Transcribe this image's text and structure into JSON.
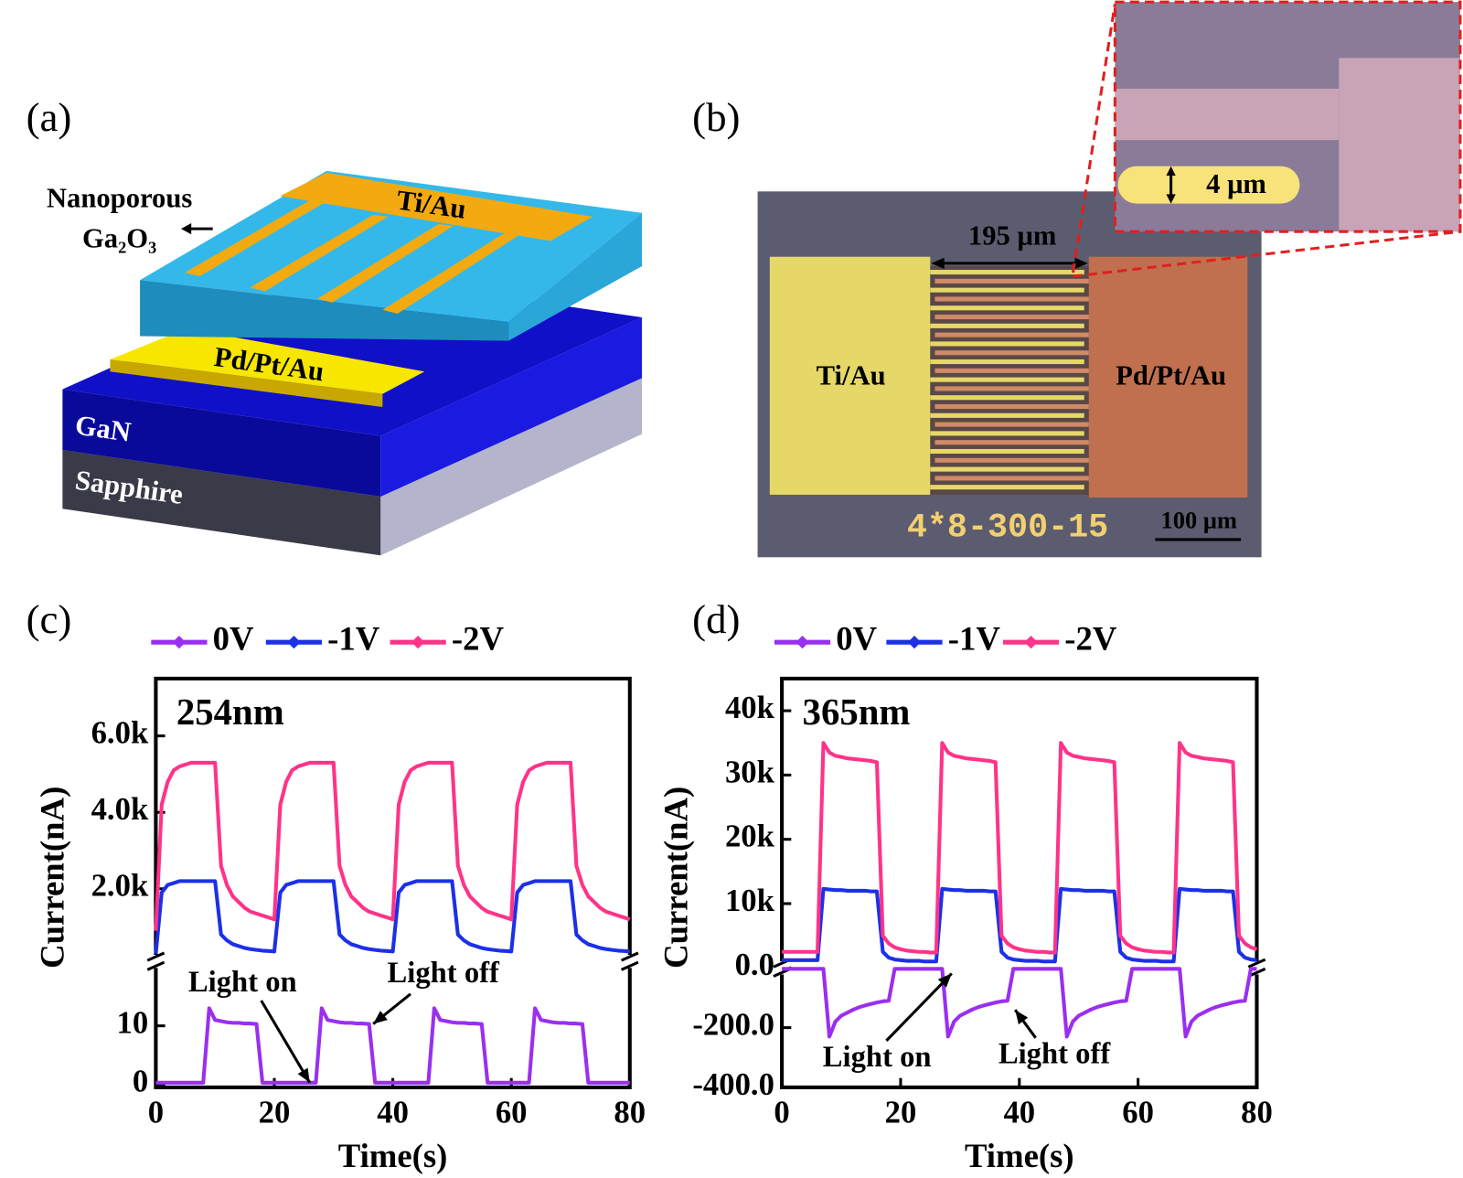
{
  "figure": {
    "a": {
      "label": "(a)",
      "nanoporous": "Nanoporous",
      "oxide": "Ga₂O₃",
      "top_electrode": "Ti/Au",
      "bottom_electrode": "Pd/Pt/Au",
      "layer_1": "GaN",
      "layer_2": "Sapphire"
    },
    "b": {
      "label": "(b)",
      "gap": "195 μm",
      "left_pad": "Ti/Au",
      "right_pad": "Pd/Pt/Au",
      "chip_id": "4*8-300-15",
      "scale_bar": "100 μm",
      "finger_width": "4 μm"
    }
  },
  "chart_data": [
    {
      "type": "line",
      "panel": "(c)",
      "label": "254nm",
      "xlabel": "Time(s)",
      "ylabel": "Current(nA)",
      "legend": "top",
      "annotations": [
        "Light on",
        "Light off"
      ],
      "x": [
        0,
        1,
        2,
        3,
        4,
        5,
        6,
        7,
        8,
        9,
        10,
        11,
        12,
        13,
        14,
        15,
        16,
        17,
        18,
        19,
        20,
        21,
        22,
        23,
        24,
        25,
        26,
        27,
        28,
        29,
        30,
        31,
        32,
        33,
        34,
        35,
        36,
        37,
        38,
        39,
        40,
        41,
        42,
        43,
        44,
        45,
        46,
        47,
        48,
        49,
        50,
        51,
        52,
        53,
        54,
        55,
        56,
        57,
        58,
        59,
        60,
        61,
        62,
        63,
        64,
        65,
        66,
        67,
        68,
        69,
        70,
        71,
        72,
        73,
        74,
        75,
        76,
        77,
        78,
        79,
        80
      ],
      "xlim": [
        0,
        80
      ],
      "xticks": [
        0,
        20,
        40,
        60,
        80
      ],
      "ylim": [
        100,
        7500
      ],
      "yticks": [
        {
          "value": 2000,
          "label": "2.0k"
        },
        {
          "value": 4000,
          "label": "4.0k"
        },
        {
          "value": 6000,
          "label": "6.0k"
        }
      ],
      "y2lim": [
        -0.5,
        21
      ],
      "y2ticks": [
        0,
        10
      ],
      "series": [
        {
          "name": "0V",
          "color": "#9a2ff0",
          "axis": "y2",
          "values": [
            0.3,
            0.3,
            0.3,
            0.3,
            0.3,
            0.3,
            0.3,
            0.3,
            0.3,
            13,
            11,
            10.8,
            10.6,
            10.5,
            10.5,
            10.4,
            10.4,
            10.3,
            0.3,
            0.3,
            0.3,
            0.3,
            0.3,
            0.3,
            0.3,
            0.3,
            0.3,
            0.3,
            13,
            11,
            10.8,
            10.6,
            10.5,
            10.5,
            10.4,
            10.4,
            10.3,
            0.3,
            0.3,
            0.3,
            0.3,
            0.3,
            0.3,
            0.3,
            0.3,
            0.3,
            0.3,
            13,
            11,
            10.8,
            10.6,
            10.5,
            10.5,
            10.4,
            10.4,
            10.3,
            0.3,
            0.3,
            0.3,
            0.3,
            0.3,
            0.3,
            0.3,
            0.3,
            13,
            11,
            10.8,
            10.6,
            10.5,
            10.5,
            10.4,
            10.4,
            10.3,
            0.3,
            0.3,
            0.3,
            0.3,
            0.3,
            0.3,
            0.3,
            0.3
          ]
        },
        {
          "name": "-1V",
          "color": "#1c30e8",
          "values": [
            300,
            1900,
            2100,
            2150,
            2200,
            2200,
            2200,
            2200,
            2200,
            2200,
            2200,
            800,
            650,
            550,
            500,
            450,
            420,
            400,
            380,
            370,
            360,
            1900,
            2100,
            2150,
            2200,
            2200,
            2200,
            2200,
            2200,
            2200,
            2200,
            800,
            650,
            550,
            500,
            450,
            420,
            400,
            380,
            370,
            360,
            1900,
            2100,
            2150,
            2200,
            2200,
            2200,
            2200,
            2200,
            2200,
            2200,
            800,
            650,
            550,
            500,
            450,
            420,
            400,
            380,
            370,
            360,
            1900,
            2100,
            2150,
            2200,
            2200,
            2200,
            2200,
            2200,
            2200,
            2200,
            800,
            650,
            550,
            500,
            450,
            420,
            400,
            380,
            370,
            360
          ]
        },
        {
          "name": "-2V",
          "color": "#ff3388",
          "values": [
            900,
            4200,
            4800,
            5100,
            5200,
            5250,
            5300,
            5300,
            5300,
            5300,
            5300,
            2600,
            2100,
            1800,
            1650,
            1500,
            1400,
            1350,
            1300,
            1250,
            1200,
            4200,
            4800,
            5100,
            5200,
            5250,
            5300,
            5300,
            5300,
            5300,
            5300,
            2600,
            2100,
            1800,
            1650,
            1500,
            1400,
            1350,
            1300,
            1250,
            1200,
            4200,
            4800,
            5100,
            5200,
            5250,
            5300,
            5300,
            5300,
            5300,
            5300,
            2600,
            2100,
            1800,
            1650,
            1500,
            1400,
            1350,
            1300,
            1250,
            1200,
            4200,
            4800,
            5100,
            5200,
            5250,
            5300,
            5300,
            5300,
            5300,
            5300,
            2600,
            2100,
            1800,
            1650,
            1500,
            1400,
            1350,
            1300,
            1250,
            1200
          ]
        }
      ]
    },
    {
      "type": "line",
      "panel": "(d)",
      "label": "365nm",
      "xlabel": "Time(s)",
      "ylabel": "Current(nA)",
      "legend": "top",
      "annotations": [
        "Light on",
        "Light off"
      ],
      "x": [
        0,
        1,
        2,
        3,
        4,
        5,
        6,
        7,
        8,
        9,
        10,
        11,
        12,
        13,
        14,
        15,
        16,
        17,
        18,
        19,
        20,
        21,
        22,
        23,
        24,
        25,
        26,
        27,
        28,
        29,
        30,
        31,
        32,
        33,
        34,
        35,
        36,
        37,
        38,
        39,
        40,
        41,
        42,
        43,
        44,
        45,
        46,
        47,
        48,
        49,
        50,
        51,
        52,
        53,
        54,
        55,
        56,
        57,
        58,
        59,
        60,
        61,
        62,
        63,
        64,
        65,
        66,
        67,
        68,
        69,
        70,
        71,
        72,
        73,
        74,
        75,
        76,
        77,
        78,
        79,
        80
      ],
      "xlim": [
        0,
        80
      ],
      "xticks": [
        0,
        20,
        40,
        60,
        80
      ],
      "ylim": [
        0,
        45000
      ],
      "yticks": [
        {
          "value": 10000,
          "label": "10k"
        },
        {
          "value": 20000,
          "label": "20k"
        },
        {
          "value": 30000,
          "label": "30k"
        },
        {
          "value": 40000,
          "label": "40k"
        }
      ],
      "y2lim": [
        -400,
        0
      ],
      "y2ticks": [
        {
          "value": -400,
          "label": "-400.0"
        },
        {
          "value": -200,
          "label": "-200.0"
        },
        {
          "value": 0,
          "label": "0.0"
        }
      ],
      "series": [
        {
          "name": "0V",
          "color": "#9a2ff0",
          "axis": "y2",
          "values": [
            -3,
            -3,
            -3,
            -3,
            -3,
            -3,
            -3,
            -3,
            -230,
            -180,
            -160,
            -150,
            -140,
            -132,
            -126,
            -121,
            -116,
            -112,
            -110,
            -3,
            -3,
            -3,
            -3,
            -3,
            -3,
            -3,
            -3,
            -3,
            -230,
            -180,
            -160,
            -150,
            -140,
            -132,
            -126,
            -121,
            -116,
            -112,
            -110,
            -3,
            -3,
            -3,
            -3,
            -3,
            -3,
            -3,
            -3,
            -3,
            -230,
            -180,
            -160,
            -150,
            -140,
            -132,
            -126,
            -121,
            -116,
            -112,
            -110,
            -3,
            -3,
            -3,
            -3,
            -3,
            -3,
            -3,
            -3,
            -3,
            -230,
            -180,
            -160,
            -150,
            -140,
            -132,
            -126,
            -121,
            -116,
            -112,
            -110,
            -3,
            -3
          ]
        },
        {
          "name": "-1V",
          "color": "#1c30e8",
          "values": [
            1200,
            1200,
            1200,
            1200,
            1200,
            1200,
            1200,
            12300,
            12200,
            12100,
            12100,
            12000,
            12000,
            12000,
            12000,
            11900,
            11900,
            2500,
            1600,
            1300,
            1200,
            1100,
            1100,
            1100,
            1000,
            1000,
            1000,
            12300,
            12200,
            12100,
            12100,
            12000,
            12000,
            12000,
            12000,
            11900,
            11900,
            2500,
            1600,
            1300,
            1200,
            1100,
            1100,
            1100,
            1000,
            1000,
            1000,
            12300,
            12200,
            12100,
            12100,
            12000,
            12000,
            12000,
            12000,
            11900,
            11900,
            2500,
            1600,
            1300,
            1200,
            1100,
            1100,
            1100,
            1000,
            1000,
            1000,
            12300,
            12200,
            12100,
            12100,
            12000,
            12000,
            12000,
            12000,
            11900,
            11900,
            2500,
            1600,
            1300,
            1200
          ]
        },
        {
          "name": "-2V",
          "color": "#ff3388",
          "values": [
            2500,
            2500,
            2500,
            2500,
            2500,
            2500,
            2500,
            35000,
            33500,
            33000,
            32800,
            32600,
            32500,
            32400,
            32300,
            32200,
            32000,
            5000,
            3800,
            3200,
            2900,
            2700,
            2600,
            2500,
            2500,
            2400,
            2400,
            35000,
            33500,
            33000,
            32800,
            32600,
            32500,
            32400,
            32300,
            32200,
            32000,
            5000,
            3800,
            3200,
            2900,
            2700,
            2600,
            2500,
            2500,
            2400,
            2400,
            35000,
            33500,
            33000,
            32800,
            32600,
            32500,
            32400,
            32300,
            32200,
            32000,
            5000,
            3800,
            3200,
            2900,
            2700,
            2600,
            2500,
            2500,
            2400,
            2400,
            35000,
            33500,
            33000,
            32800,
            32600,
            32500,
            32400,
            32300,
            32200,
            32000,
            5000,
            3800,
            3200,
            2900
          ]
        }
      ]
    }
  ]
}
